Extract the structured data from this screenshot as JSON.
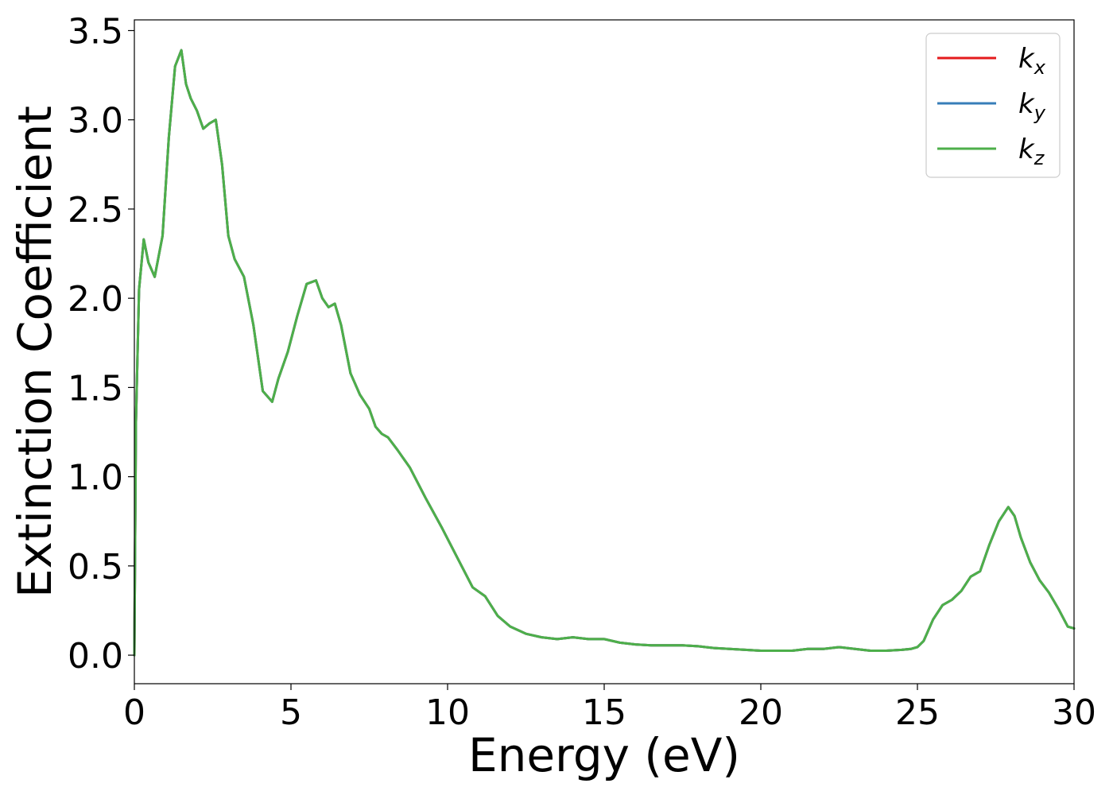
{
  "chart_data": {
    "type": "line",
    "xlabel": "Energy (eV)",
    "ylabel": "Extinction Coefficient",
    "xlim": [
      0,
      30
    ],
    "ylim": [
      -0.16,
      3.56
    ],
    "x_ticks": [
      0,
      5,
      10,
      15,
      20,
      25,
      30
    ],
    "y_ticks": [
      0.0,
      0.5,
      1.0,
      1.5,
      2.0,
      2.5,
      3.0,
      3.5
    ],
    "x_tick_labels": [
      "0",
      "5",
      "10",
      "15",
      "20",
      "25",
      "30"
    ],
    "y_tick_labels": [
      "0.0",
      "0.5",
      "1.0",
      "1.5",
      "2.0",
      "2.5",
      "3.0",
      "3.5"
    ],
    "grid": false,
    "legend_position": "top-right",
    "x": [
      0,
      0.05,
      0.15,
      0.3,
      0.45,
      0.65,
      0.9,
      1.1,
      1.3,
      1.5,
      1.65,
      1.8,
      2.0,
      2.2,
      2.4,
      2.6,
      2.8,
      3.0,
      3.2,
      3.5,
      3.8,
      4.1,
      4.4,
      4.6,
      4.9,
      5.2,
      5.5,
      5.8,
      6.0,
      6.2,
      6.4,
      6.6,
      6.9,
      7.2,
      7.5,
      7.7,
      7.9,
      8.1,
      8.4,
      8.8,
      9.3,
      9.8,
      10.3,
      10.8,
      11.2,
      11.6,
      12.0,
      12.5,
      13.0,
      13.5,
      14.0,
      14.5,
      15.0,
      15.5,
      16.0,
      16.5,
      17.0,
      17.5,
      18.0,
      18.5,
      19.0,
      19.5,
      20.0,
      20.5,
      21.0,
      21.5,
      22.0,
      22.5,
      23.0,
      23.5,
      24.0,
      24.5,
      24.8,
      25.0,
      25.2,
      25.5,
      25.8,
      26.1,
      26.4,
      26.7,
      27.0,
      27.3,
      27.6,
      27.9,
      28.1,
      28.3,
      28.6,
      28.9,
      29.2,
      29.5,
      29.8,
      30.0
    ],
    "series": [
      {
        "name": "k_x",
        "label_base": "k",
        "label_sub": "x",
        "color": "#e41a1c",
        "values": [
          0.0,
          1.3,
          2.05,
          2.33,
          2.2,
          2.12,
          2.35,
          2.9,
          3.3,
          3.39,
          3.2,
          3.12,
          3.05,
          2.95,
          2.98,
          3.0,
          2.75,
          2.35,
          2.22,
          2.12,
          1.85,
          1.48,
          1.42,
          1.55,
          1.7,
          1.9,
          2.08,
          2.1,
          2.0,
          1.95,
          1.97,
          1.85,
          1.58,
          1.46,
          1.38,
          1.28,
          1.24,
          1.22,
          1.15,
          1.05,
          0.88,
          0.72,
          0.55,
          0.38,
          0.33,
          0.22,
          0.16,
          0.12,
          0.1,
          0.09,
          0.1,
          0.09,
          0.09,
          0.07,
          0.06,
          0.055,
          0.055,
          0.055,
          0.05,
          0.04,
          0.035,
          0.03,
          0.025,
          0.025,
          0.025,
          0.035,
          0.035,
          0.045,
          0.035,
          0.025,
          0.025,
          0.03,
          0.035,
          0.045,
          0.08,
          0.2,
          0.28,
          0.31,
          0.36,
          0.44,
          0.47,
          0.62,
          0.75,
          0.83,
          0.78,
          0.66,
          0.52,
          0.42,
          0.35,
          0.26,
          0.16,
          0.15
        ]
      },
      {
        "name": "k_y",
        "label_base": "k",
        "label_sub": "y",
        "color": "#377eb8",
        "values": [
          0.0,
          1.3,
          2.05,
          2.33,
          2.2,
          2.12,
          2.35,
          2.9,
          3.3,
          3.39,
          3.2,
          3.12,
          3.05,
          2.95,
          2.98,
          3.0,
          2.75,
          2.35,
          2.22,
          2.12,
          1.85,
          1.48,
          1.42,
          1.55,
          1.7,
          1.9,
          2.08,
          2.1,
          2.0,
          1.95,
          1.97,
          1.85,
          1.58,
          1.46,
          1.38,
          1.28,
          1.24,
          1.22,
          1.15,
          1.05,
          0.88,
          0.72,
          0.55,
          0.38,
          0.33,
          0.22,
          0.16,
          0.12,
          0.1,
          0.09,
          0.1,
          0.09,
          0.09,
          0.07,
          0.06,
          0.055,
          0.055,
          0.055,
          0.05,
          0.04,
          0.035,
          0.03,
          0.025,
          0.025,
          0.025,
          0.035,
          0.035,
          0.045,
          0.035,
          0.025,
          0.025,
          0.03,
          0.035,
          0.045,
          0.08,
          0.2,
          0.28,
          0.31,
          0.36,
          0.44,
          0.47,
          0.62,
          0.75,
          0.83,
          0.78,
          0.66,
          0.52,
          0.42,
          0.35,
          0.26,
          0.16,
          0.15
        ]
      },
      {
        "name": "k_z",
        "label_base": "k",
        "label_sub": "z",
        "color": "#4daf4a",
        "values": [
          0.0,
          1.3,
          2.05,
          2.33,
          2.2,
          2.12,
          2.35,
          2.9,
          3.3,
          3.39,
          3.2,
          3.12,
          3.05,
          2.95,
          2.98,
          3.0,
          2.75,
          2.35,
          2.22,
          2.12,
          1.85,
          1.48,
          1.42,
          1.55,
          1.7,
          1.9,
          2.08,
          2.1,
          2.0,
          1.95,
          1.97,
          1.85,
          1.58,
          1.46,
          1.38,
          1.28,
          1.24,
          1.22,
          1.15,
          1.05,
          0.88,
          0.72,
          0.55,
          0.38,
          0.33,
          0.22,
          0.16,
          0.12,
          0.1,
          0.09,
          0.1,
          0.09,
          0.09,
          0.07,
          0.06,
          0.055,
          0.055,
          0.055,
          0.05,
          0.04,
          0.035,
          0.03,
          0.025,
          0.025,
          0.025,
          0.035,
          0.035,
          0.045,
          0.035,
          0.025,
          0.025,
          0.03,
          0.035,
          0.045,
          0.08,
          0.2,
          0.28,
          0.31,
          0.36,
          0.44,
          0.47,
          0.62,
          0.75,
          0.83,
          0.78,
          0.66,
          0.52,
          0.42,
          0.35,
          0.26,
          0.16,
          0.15
        ]
      }
    ]
  }
}
